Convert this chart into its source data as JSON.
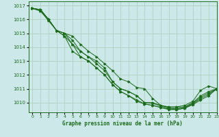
{
  "title": "Graphe pression niveau de la mer (hPa)",
  "bg_color": "#cce8e8",
  "grid_color": "#aaccbb",
  "line_color": "#1a6b1a",
  "xlim": [
    -0.5,
    23
  ],
  "ylim": [
    1009.3,
    1017.3
  ],
  "yticks": [
    1010,
    1011,
    1012,
    1013,
    1014,
    1015,
    1016,
    1017
  ],
  "xticks": [
    0,
    1,
    2,
    3,
    4,
    5,
    6,
    7,
    8,
    9,
    10,
    11,
    12,
    13,
    14,
    15,
    16,
    17,
    18,
    19,
    20,
    21,
    22,
    23
  ],
  "series": [
    [
      1016.8,
      1016.7,
      1016.0,
      1015.2,
      1015.0,
      1014.8,
      1014.2,
      1013.7,
      1013.3,
      1012.8,
      1012.3,
      1011.7,
      1011.5,
      1011.1,
      1011.0,
      1010.3,
      1009.8,
      1009.7,
      1009.7,
      1009.8,
      1010.1,
      1010.9,
      1011.2,
      1011.0
    ],
    [
      1016.8,
      1016.7,
      1016.0,
      1015.2,
      1015.0,
      1014.5,
      1013.7,
      1013.3,
      1013.0,
      1012.5,
      1011.5,
      1011.0,
      1010.8,
      1010.5,
      1010.0,
      1010.0,
      1009.8,
      1009.65,
      1009.65,
      1009.7,
      1010.0,
      1010.5,
      1010.8,
      1011.0
    ],
    [
      1016.8,
      1016.7,
      1016.0,
      1015.2,
      1015.0,
      1014.2,
      1013.7,
      1013.3,
      1012.8,
      1012.3,
      1011.5,
      1011.0,
      1010.8,
      1010.5,
      1010.0,
      1009.95,
      1009.75,
      1009.6,
      1009.55,
      1009.65,
      1009.95,
      1010.4,
      1010.7,
      1011.0
    ],
    [
      1016.8,
      1016.6,
      1016.0,
      1015.2,
      1014.8,
      1014.2,
      1013.3,
      1013.0,
      1012.5,
      1012.0,
      1011.3,
      1010.8,
      1010.5,
      1010.2,
      1009.9,
      1009.8,
      1009.65,
      1009.55,
      1009.5,
      1009.6,
      1009.9,
      1010.3,
      1010.6,
      1011.0
    ],
    [
      1016.8,
      1016.6,
      1015.9,
      1015.2,
      1014.8,
      1013.7,
      1013.3,
      1013.0,
      1012.5,
      1012.0,
      1011.3,
      1010.8,
      1010.5,
      1010.1,
      1009.9,
      1009.8,
      1009.65,
      1009.5,
      1009.5,
      1009.6,
      1009.85,
      1010.2,
      1010.5,
      1011.0
    ]
  ]
}
